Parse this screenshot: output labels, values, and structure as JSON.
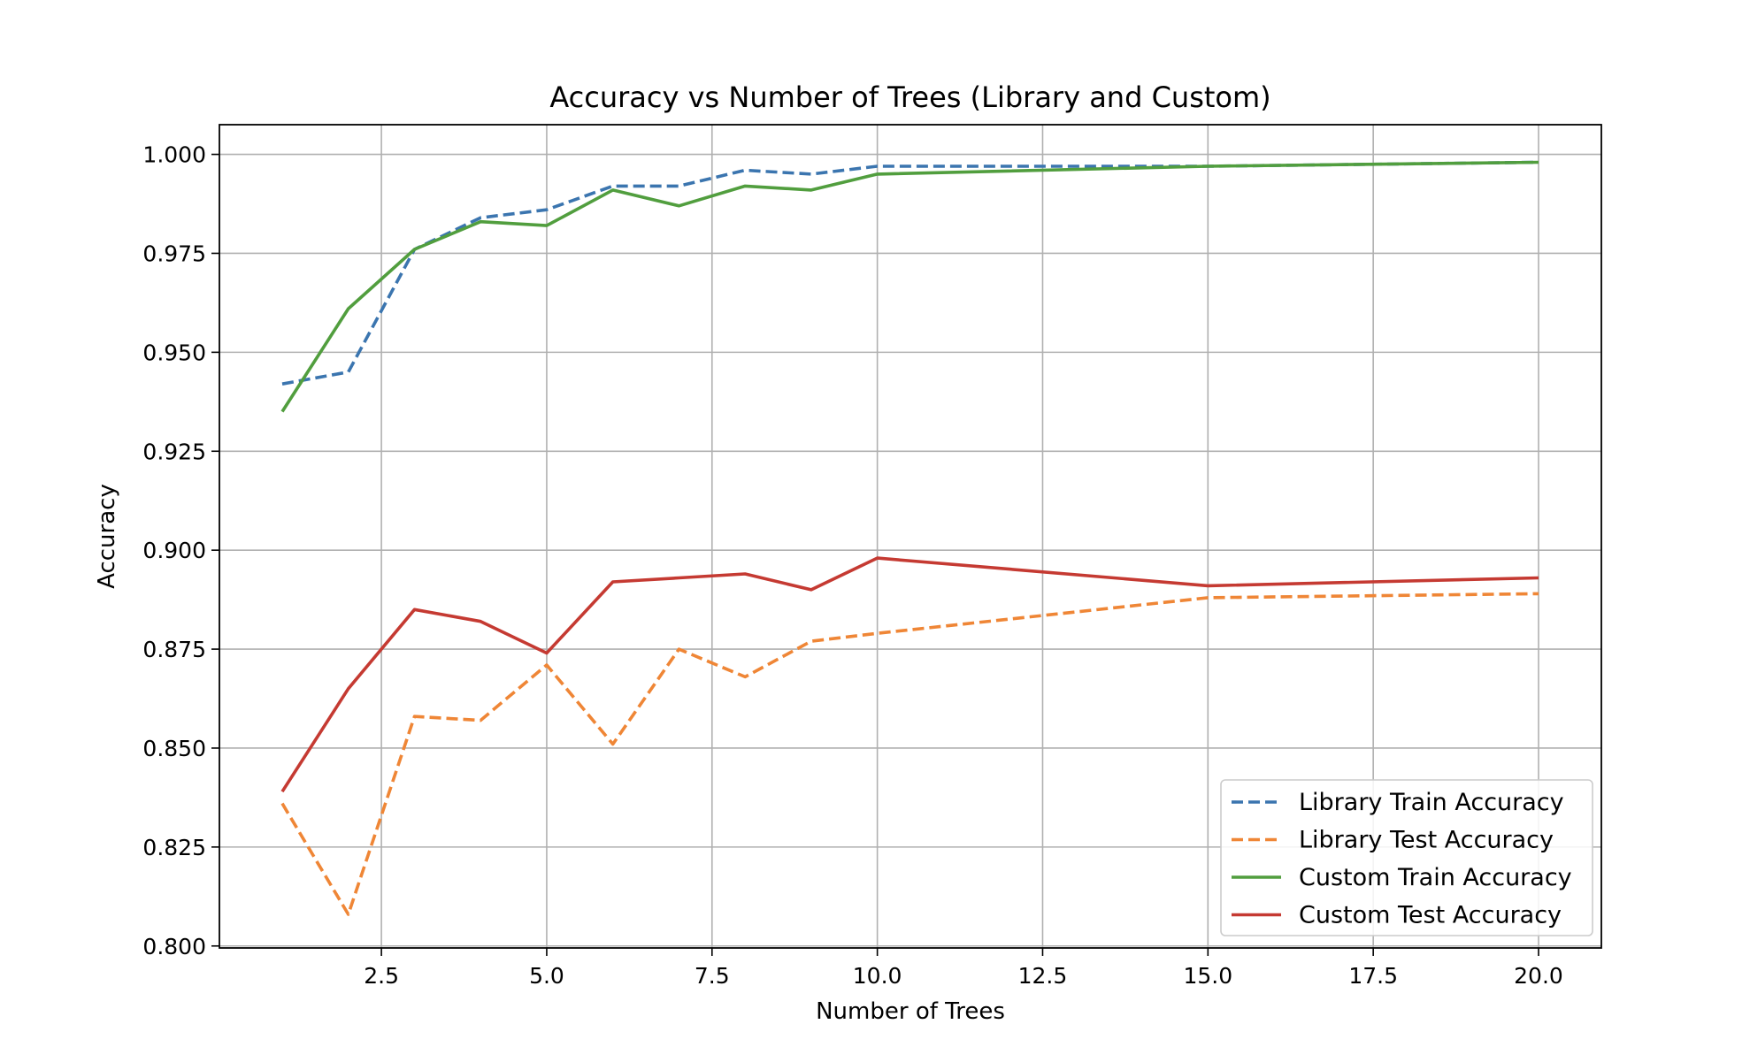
{
  "chart_data": {
    "type": "line",
    "title": "Accuracy vs Number of Trees (Library and Custom)",
    "xlabel": "Number of Trees",
    "ylabel": "Accuracy",
    "xlim": [
      0.05,
      20.95
    ],
    "ylim": [
      0.7995,
      1.0075
    ],
    "xticks": [
      2.5,
      5.0,
      7.5,
      10.0,
      12.5,
      15.0,
      17.5,
      20.0
    ],
    "xtick_labels": [
      "2.5",
      "5.0",
      "7.5",
      "10.0",
      "12.5",
      "15.0",
      "17.5",
      "20.0"
    ],
    "yticks": [
      0.8,
      0.825,
      0.85,
      0.875,
      0.9,
      0.925,
      0.95,
      0.975,
      1.0
    ],
    "ytick_labels": [
      "0.800",
      "0.825",
      "0.850",
      "0.875",
      "0.900",
      "0.925",
      "0.950",
      "0.975",
      "1.000"
    ],
    "grid": true,
    "legend_position": "lower-right",
    "series": [
      {
        "name": "Library Train Accuracy",
        "color": "#3b75af",
        "style": "dashed",
        "x": [
          1,
          2,
          3,
          4,
          5,
          6,
          7,
          8,
          9,
          10,
          15,
          20
        ],
        "y": [
          0.942,
          0.945,
          0.976,
          0.984,
          0.986,
          0.992,
          0.992,
          0.996,
          0.995,
          0.997,
          0.997,
          0.998
        ]
      },
      {
        "name": "Library Test Accuracy",
        "color": "#ef8636",
        "style": "dashed",
        "x": [
          1,
          2,
          3,
          4,
          5,
          6,
          7,
          8,
          9,
          10,
          15,
          20
        ],
        "y": [
          0.836,
          0.808,
          0.858,
          0.857,
          0.871,
          0.851,
          0.875,
          0.868,
          0.877,
          0.879,
          0.888,
          0.889
        ]
      },
      {
        "name": "Custom Train Accuracy",
        "color": "#519e3e",
        "style": "solid",
        "x": [
          1,
          2,
          3,
          4,
          5,
          6,
          7,
          8,
          9,
          10,
          15,
          20
        ],
        "y": [
          0.935,
          0.961,
          0.976,
          0.983,
          0.982,
          0.991,
          0.987,
          0.992,
          0.991,
          0.995,
          0.997,
          0.998
        ]
      },
      {
        "name": "Custom Test Accuracy",
        "color": "#c53a32",
        "style": "solid",
        "x": [
          1,
          2,
          3,
          4,
          5,
          6,
          7,
          8,
          9,
          10,
          15,
          20
        ],
        "y": [
          0.839,
          0.865,
          0.885,
          0.882,
          0.874,
          0.892,
          0.893,
          0.894,
          0.89,
          0.898,
          0.891,
          0.893
        ]
      }
    ]
  }
}
